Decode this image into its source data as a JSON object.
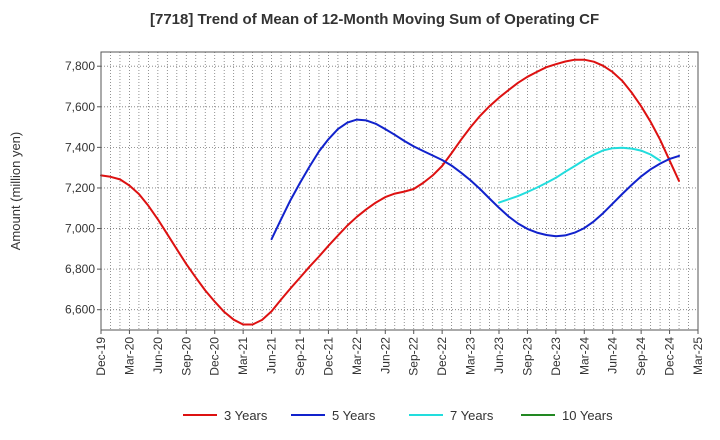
{
  "chart_data": {
    "type": "line",
    "title": "[7718]  Trend of Mean of 12-Month Moving Sum of Operating CF",
    "xlabel": "",
    "ylabel": "Amount (million yen)",
    "ylim": [
      6500,
      7870
    ],
    "yticks": [
      6600,
      6800,
      7000,
      7200,
      7400,
      7600,
      7800
    ],
    "ytick_labels": [
      "6,600",
      "6,800",
      "7,000",
      "7,200",
      "7,400",
      "7,600",
      "7,800"
    ],
    "xtick_labels": [
      "Dec-19",
      "Mar-20",
      "Jun-20",
      "Sep-20",
      "Dec-20",
      "Mar-21",
      "Jun-21",
      "Sep-21",
      "Dec-21",
      "Mar-22",
      "Jun-22",
      "Sep-22",
      "Dec-22",
      "Mar-23",
      "Jun-23",
      "Sep-23",
      "Dec-23",
      "Mar-24",
      "Jun-24",
      "Sep-24",
      "Dec-24",
      "Mar-25"
    ],
    "grid": true,
    "legend_position": "bottom",
    "series": [
      {
        "name": "3 Years",
        "color": "#dd1111",
        "start": 0,
        "values": [
          7262,
          7255,
          7242,
          7212,
          7170,
          7112,
          7045,
          6972,
          6898,
          6825,
          6758,
          6695,
          6640,
          6589,
          6551,
          6527,
          6527,
          6550,
          6592,
          6650,
          6705,
          6758,
          6812,
          6862,
          6915,
          6965,
          7015,
          7058,
          7095,
          7128,
          7155,
          7172,
          7182,
          7195,
          7225,
          7262,
          7308,
          7372,
          7438,
          7500,
          7555,
          7603,
          7645,
          7682,
          7718,
          7748,
          7772,
          7795,
          7810,
          7823,
          7832,
          7832,
          7822,
          7802,
          7771,
          7728,
          7670,
          7603,
          7526,
          7438,
          7335,
          7235
        ]
      },
      {
        "name": "5 Years",
        "color": "#1122cc",
        "start": 18,
        "values": [
          6948,
          7045,
          7140,
          7225,
          7305,
          7380,
          7440,
          7490,
          7522,
          7537,
          7533,
          7516,
          7490,
          7462,
          7432,
          7405,
          7382,
          7360,
          7338,
          7310,
          7275,
          7237,
          7195,
          7148,
          7102,
          7060,
          7025,
          6998,
          6980,
          6968,
          6962,
          6966,
          6980,
          7002,
          7035,
          7076,
          7123,
          7170,
          7215,
          7257,
          7292,
          7320,
          7343,
          7358
        ]
      },
      {
        "name": "7 Years",
        "color": "#22dddd",
        "start": 42,
        "values": [
          7128,
          7144,
          7160,
          7180,
          7202,
          7225,
          7250,
          7280,
          7308,
          7338,
          7364,
          7385,
          7396,
          7398,
          7394,
          7384,
          7365,
          7335
        ]
      },
      {
        "name": "10 Years",
        "color": "#228822",
        "start": 0,
        "values": []
      }
    ]
  }
}
